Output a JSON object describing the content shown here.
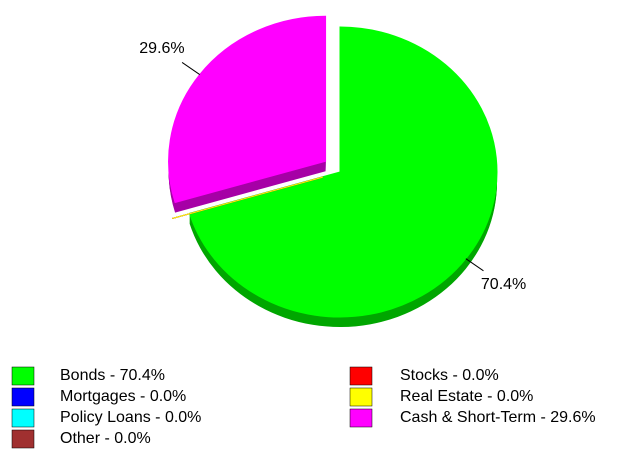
{
  "chart_data": {
    "type": "pie",
    "categories": [
      "Bonds - 70.4%",
      "Mortgages - 0.0%",
      "Policy Loans - 0.0%",
      "Other - 0.0%",
      "Stocks - 0.0%",
      "Real Estate - 0.0%",
      "Cash & Short-Term - 29.6%"
    ],
    "values": [
      70.4,
      0.0,
      0.0,
      0.0,
      0.0,
      0.0,
      29.6
    ],
    "value_labels": [
      "70.4%",
      null,
      null,
      null,
      null,
      null,
      "29.6%"
    ],
    "colors": [
      "#00ff00",
      "#0000ff",
      "#00ffff",
      "#a03030",
      "#ff0000",
      "#ffff00",
      "#ff00ff"
    ],
    "exploded": [
      false,
      true,
      true,
      true,
      true,
      true,
      true
    ],
    "legend": "bottom"
  }
}
